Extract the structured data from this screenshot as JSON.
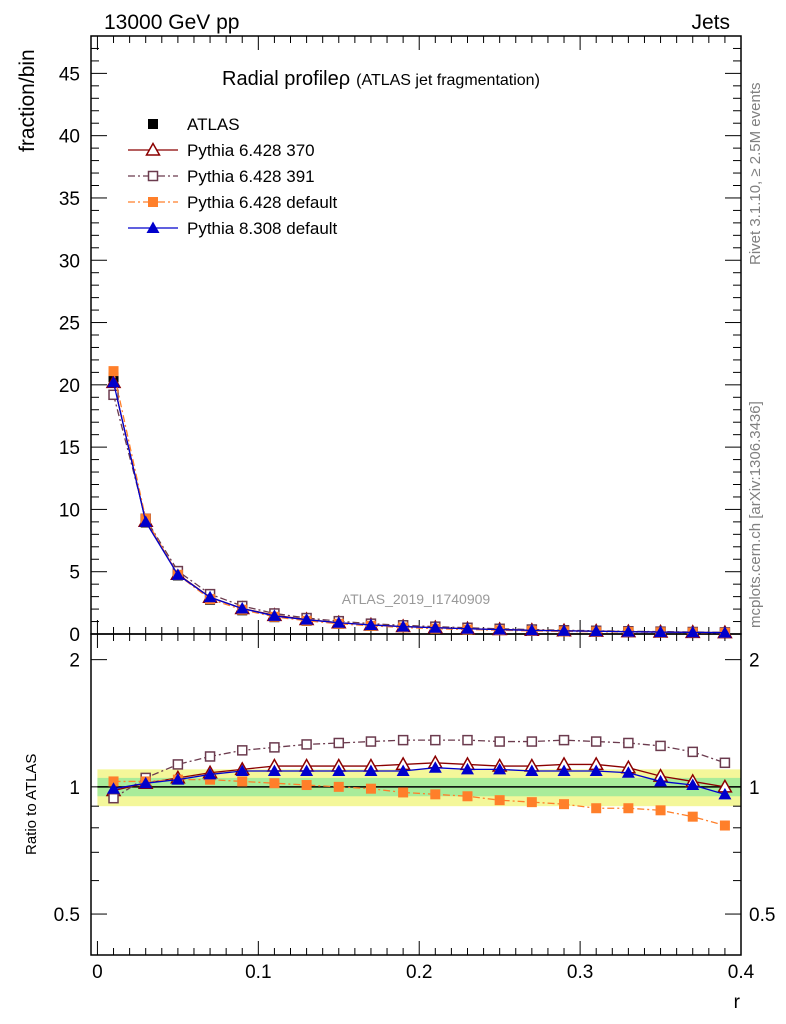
{
  "header": {
    "left": "13000 GeV pp",
    "right": "Jets"
  },
  "side": {
    "rivet": "Rivet 3.1.10, ≥ 2.5M events",
    "mcplots": "mcplots.cern.ch [arXiv:1306.3436]"
  },
  "chart_data": {
    "type": "line",
    "title": "Radial profile",
    "title_symbol": "ρ",
    "subtitle": "(ATLAS jet fragmentation)",
    "watermark": "ATLAS_2019_I1740909",
    "x": [
      0.01,
      0.03,
      0.05,
      0.07,
      0.09,
      0.11,
      0.13,
      0.15,
      0.17,
      0.19,
      0.21,
      0.23,
      0.25,
      0.27,
      0.29,
      0.31,
      0.33,
      0.35,
      0.37,
      0.39
    ],
    "xlim": [
      -0.004,
      0.4
    ],
    "xticks": [
      0,
      0.1,
      0.2,
      0.3,
      0.4
    ],
    "xticklabels": [
      "0",
      "0.1",
      "0.2",
      "0.3",
      "0.4"
    ],
    "xlabel": "r",
    "main": {
      "ylabel": "fraction/bin",
      "ylim": [
        0,
        48
      ],
      "yticks": [
        0,
        5,
        10,
        15,
        20,
        25,
        30,
        35,
        40,
        45
      ],
      "yticklabels": [
        "0",
        "5",
        "10",
        "15",
        "20",
        "25",
        "30",
        "35",
        "40",
        "45"
      ]
    },
    "ratio": {
      "ylabel": "Ratio to ATLAS",
      "ylim": [
        0.4,
        2.3
      ],
      "yticks": [
        0.5,
        1,
        2
      ],
      "yticklabels": [
        "0.5",
        "1",
        "2"
      ],
      "band_outer": 0.1,
      "band_inner": 0.05
    },
    "series": [
      {
        "name": "ATLAS",
        "color": "#000000",
        "marker": "square-filled",
        "line": "none",
        "values": [
          20.6,
          8.95,
          4.7,
          2.75,
          1.9,
          1.35,
          1.05,
          0.82,
          0.66,
          0.54,
          0.45,
          0.38,
          0.32,
          0.27,
          0.23,
          0.2,
          0.17,
          0.15,
          0.13,
          0.11
        ],
        "ratio": [
          1,
          1,
          1,
          1,
          1,
          1,
          1,
          1,
          1,
          1,
          1,
          1,
          1,
          1,
          1,
          1,
          1,
          1,
          1,
          1
        ]
      },
      {
        "name": "Pythia 6.428 370",
        "color": "#8b0000",
        "marker": "triangle-open",
        "line": "solid",
        "values": [
          20.2,
          9.05,
          4.8,
          2.95,
          2.05,
          1.5,
          1.16,
          0.9,
          0.73,
          0.6,
          0.51,
          0.42,
          0.36,
          0.3,
          0.26,
          0.23,
          0.19,
          0.16,
          0.135,
          0.112
        ],
        "ratio": [
          0.98,
          1.02,
          1.05,
          1.08,
          1.1,
          1.12,
          1.12,
          1.12,
          1.12,
          1.13,
          1.14,
          1.13,
          1.12,
          1.12,
          1.13,
          1.13,
          1.11,
          1.06,
          1.03,
          1.0
        ]
      },
      {
        "name": "Pythia 6.428 391",
        "color": "#6b3b4e",
        "marker": "square-open",
        "line": "dashdot",
        "values": [
          19.2,
          9.25,
          5.05,
          3.2,
          2.25,
          1.65,
          1.28,
          1.03,
          0.83,
          0.7,
          0.59,
          0.5,
          0.42,
          0.36,
          0.3,
          0.26,
          0.22,
          0.19,
          0.16,
          0.13
        ],
        "ratio": [
          0.94,
          1.05,
          1.13,
          1.18,
          1.22,
          1.24,
          1.26,
          1.27,
          1.28,
          1.29,
          1.29,
          1.29,
          1.28,
          1.28,
          1.29,
          1.28,
          1.27,
          1.25,
          1.21,
          1.14
        ]
      },
      {
        "name": "Pythia 6.428 default",
        "color": "#ff7f2a",
        "marker": "square-filled",
        "line": "dashdot",
        "values": [
          21.1,
          9.25,
          4.75,
          2.8,
          1.95,
          1.38,
          1.06,
          0.82,
          0.66,
          0.52,
          0.43,
          0.36,
          0.3,
          0.25,
          0.21,
          0.18,
          0.16,
          0.135,
          0.112,
          0.09
        ],
        "ratio": [
          1.03,
          1.03,
          1.04,
          1.04,
          1.03,
          1.02,
          1.01,
          1.0,
          0.99,
          0.97,
          0.96,
          0.95,
          0.93,
          0.92,
          0.91,
          0.89,
          0.89,
          0.88,
          0.85,
          0.81
        ]
      },
      {
        "name": "Pythia 8.308 default",
        "color": "#0000cc",
        "marker": "triangle-filled",
        "line": "solid",
        "values": [
          20.2,
          9.0,
          4.75,
          2.95,
          2.05,
          1.45,
          1.15,
          0.9,
          0.72,
          0.59,
          0.5,
          0.42,
          0.35,
          0.29,
          0.25,
          0.22,
          0.18,
          0.15,
          0.13,
          0.105
        ],
        "ratio": [
          0.99,
          1.02,
          1.04,
          1.07,
          1.09,
          1.09,
          1.09,
          1.09,
          1.09,
          1.09,
          1.11,
          1.1,
          1.1,
          1.09,
          1.09,
          1.09,
          1.08,
          1.03,
          1.01,
          0.96
        ]
      }
    ],
    "legend_placement": "top-left"
  }
}
